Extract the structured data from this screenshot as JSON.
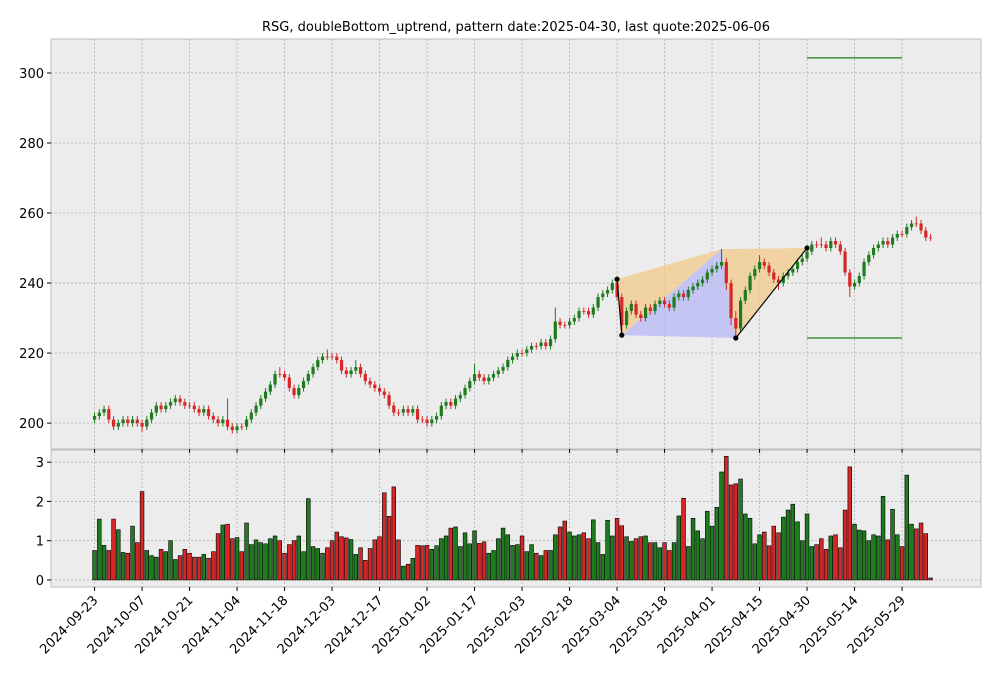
{
  "chart_data": {
    "type": "candlestick",
    "title": "RSG, doubleBottom_uptrend, pattern date:2025-04-30, last quote:2025-06-06",
    "x": [
      "2024-09-23",
      "2024-09-24",
      "2024-09-25",
      "2024-09-26",
      "2024-09-27",
      "2024-09-30",
      "2024-10-01",
      "2024-10-02",
      "2024-10-03",
      "2024-10-04",
      "2024-10-07",
      "2024-10-08",
      "2024-10-09",
      "2024-10-10",
      "2024-10-11",
      "2024-10-14",
      "2024-10-15",
      "2024-10-16",
      "2024-10-17",
      "2024-10-18",
      "2024-10-21",
      "2024-10-22",
      "2024-10-23",
      "2024-10-24",
      "2024-10-25",
      "2024-10-28",
      "2024-10-29",
      "2024-10-30",
      "2024-10-31",
      "2024-11-01",
      "2024-11-04",
      "2024-11-05",
      "2024-11-06",
      "2024-11-07",
      "2024-11-08",
      "2024-11-11",
      "2024-11-12",
      "2024-11-13",
      "2024-11-14",
      "2024-11-15",
      "2024-11-18",
      "2024-11-19",
      "2024-11-20",
      "2024-11-21",
      "2024-11-22",
      "2024-11-25",
      "2024-11-26",
      "2024-11-27",
      "2024-11-29",
      "2024-12-02",
      "2024-12-03",
      "2024-12-04",
      "2024-12-05",
      "2024-12-06",
      "2024-12-09",
      "2024-12-10",
      "2024-12-11",
      "2024-12-12",
      "2024-12-13",
      "2024-12-16",
      "2024-12-17",
      "2024-12-18",
      "2024-12-19",
      "2024-12-20",
      "2024-12-23",
      "2024-12-24",
      "2024-12-26",
      "2024-12-27",
      "2024-12-30",
      "2024-12-31",
      "2025-01-02",
      "2025-01-03",
      "2025-01-06",
      "2025-01-07",
      "2025-01-08",
      "2025-01-10",
      "2025-01-13",
      "2025-01-14",
      "2025-01-15",
      "2025-01-16",
      "2025-01-17",
      "2025-01-21",
      "2025-01-22",
      "2025-01-23",
      "2025-01-24",
      "2025-01-27",
      "2025-01-28",
      "2025-01-29",
      "2025-01-30",
      "2025-01-31",
      "2025-02-03",
      "2025-02-04",
      "2025-02-05",
      "2025-02-06",
      "2025-02-07",
      "2025-02-10",
      "2025-02-11",
      "2025-02-12",
      "2025-02-13",
      "2025-02-14",
      "2025-02-18",
      "2025-02-19",
      "2025-02-20",
      "2025-02-21",
      "2025-02-24",
      "2025-02-25",
      "2025-02-26",
      "2025-02-27",
      "2025-02-28",
      "2025-03-03",
      "2025-03-04",
      "2025-03-05",
      "2025-03-06",
      "2025-03-07",
      "2025-03-10",
      "2025-03-11",
      "2025-03-12",
      "2025-03-13",
      "2025-03-14",
      "2025-03-17",
      "2025-03-18",
      "2025-03-19",
      "2025-03-20",
      "2025-03-21",
      "2025-03-24",
      "2025-03-25",
      "2025-03-26",
      "2025-03-27",
      "2025-03-28",
      "2025-03-31",
      "2025-04-01",
      "2025-04-02",
      "2025-04-03",
      "2025-04-04",
      "2025-04-07",
      "2025-04-08",
      "2025-04-09",
      "2025-04-10",
      "2025-04-11",
      "2025-04-14",
      "2025-04-15",
      "2025-04-16",
      "2025-04-17",
      "2025-04-21",
      "2025-04-22",
      "2025-04-23",
      "2025-04-24",
      "2025-04-25",
      "2025-04-28",
      "2025-04-29",
      "2025-04-30",
      "2025-05-01",
      "2025-05-02",
      "2025-05-05",
      "2025-05-06",
      "2025-05-07",
      "2025-05-08",
      "2025-05-09",
      "2025-05-12",
      "2025-05-13",
      "2025-05-14",
      "2025-05-15",
      "2025-05-16",
      "2025-05-19",
      "2025-05-20",
      "2025-05-21",
      "2025-05-22",
      "2025-05-23",
      "2025-05-27",
      "2025-05-28",
      "2025-05-29",
      "2025-05-30",
      "2025-06-02",
      "2025-06-03",
      "2025-06-04",
      "2025-06-05",
      "2025-06-06"
    ],
    "open": [
      201,
      202,
      203,
      204,
      201,
      199,
      200,
      201,
      200,
      201,
      200,
      199,
      201,
      203,
      205,
      204,
      205,
      206,
      207,
      206,
      205,
      205,
      204,
      203,
      204,
      202,
      201,
      200,
      201,
      199,
      198,
      199,
      199,
      201,
      203,
      205,
      207,
      209,
      211,
      214,
      214,
      213,
      210,
      208,
      210,
      212,
      214,
      216,
      218,
      219,
      219,
      219,
      218,
      215,
      214,
      215,
      216,
      214,
      212,
      211,
      210,
      209,
      208,
      205,
      203,
      203,
      204,
      203,
      204,
      201,
      201,
      200,
      201,
      202,
      205,
      206,
      205,
      207,
      208,
      210,
      212,
      214,
      213,
      212,
      213,
      214,
      215,
      216,
      218,
      219,
      220,
      220,
      221,
      222,
      222,
      223,
      222,
      224,
      229,
      228,
      228,
      229,
      230,
      232,
      232,
      231,
      233,
      236,
      237,
      238,
      240,
      236,
      228,
      232,
      234,
      231,
      230,
      233,
      232,
      234,
      235,
      234,
      233,
      236,
      237,
      236,
      238,
      239,
      240,
      241,
      243,
      244,
      245,
      246,
      240,
      230,
      227,
      235,
      238,
      242,
      244,
      246,
      245,
      243,
      241,
      240,
      242,
      243,
      244,
      246,
      247,
      249,
      251,
      251,
      251,
      250,
      252,
      251,
      249,
      243,
      239,
      240,
      242,
      246,
      248,
      250,
      251,
      252,
      251,
      253,
      254,
      254,
      256,
      257,
      257,
      255,
      253
    ],
    "high": [
      203,
      204,
      205,
      205,
      202,
      201,
      202,
      202,
      202,
      202,
      201,
      202,
      204,
      206,
      206,
      206,
      207,
      208,
      208,
      207,
      206,
      206,
      205,
      205,
      205,
      203,
      202,
      202,
      207,
      200,
      200,
      200,
      202,
      204,
      206,
      208,
      210,
      212,
      215,
      216,
      215,
      214,
      211,
      211,
      213,
      215,
      217,
      219,
      220,
      221,
      220,
      220,
      219,
      216,
      216,
      218,
      217,
      215,
      213,
      212,
      211,
      210,
      209,
      206,
      204,
      205,
      205,
      205,
      205,
      202,
      202,
      202,
      203,
      206,
      207,
      207,
      208,
      209,
      211,
      213,
      217,
      215,
      214,
      214,
      215,
      216,
      217,
      219,
      220,
      221,
      221,
      222,
      223,
      223,
      224,
      224,
      225,
      233,
      230,
      229,
      230,
      231,
      233,
      233,
      233,
      234,
      237,
      238,
      239,
      241,
      241.5,
      237,
      233,
      235,
      235,
      232,
      234,
      234,
      235,
      236,
      236,
      235,
      237,
      238,
      238,
      239,
      240,
      241,
      242,
      244,
      245,
      246,
      249.7,
      247,
      241,
      232,
      236,
      239,
      243,
      245,
      248,
      247,
      246,
      244,
      242,
      243,
      244,
      245,
      247,
      248,
      250,
      252,
      252,
      253,
      252,
      253,
      253,
      252,
      250,
      244,
      241,
      243,
      247,
      249,
      251,
      252,
      253,
      253,
      254,
      255,
      255,
      257,
      258,
      259,
      258,
      256,
      254
    ],
    "low": [
      200,
      201,
      202,
      200,
      198,
      198,
      199,
      199,
      199,
      199,
      197.5,
      198,
      200,
      202,
      203,
      203,
      204,
      205,
      205,
      204,
      204,
      203,
      202,
      202,
      201,
      200,
      199,
      199,
      198,
      197,
      197,
      198,
      198,
      200,
      202,
      204,
      206,
      208,
      210,
      213,
      212,
      209,
      207,
      207,
      209,
      211,
      213,
      215,
      217,
      218,
      218,
      217,
      214,
      213,
      213,
      214,
      213,
      211,
      210,
      209,
      208,
      207,
      204,
      202,
      202,
      202,
      202,
      202,
      200,
      200,
      199,
      199,
      200,
      201,
      204,
      204,
      204,
      206,
      207,
      209,
      211,
      212,
      211,
      211,
      212,
      213,
      214,
      215,
      217,
      218,
      219,
      219,
      220,
      221,
      221,
      221,
      221,
      223,
      227,
      227,
      227,
      228,
      229,
      231,
      230,
      230,
      232,
      235,
      236,
      237,
      235,
      225,
      227,
      231,
      230,
      229,
      229,
      231,
      231,
      233,
      233,
      232,
      232,
      235,
      235,
      235,
      237,
      238,
      239,
      240,
      242,
      243,
      244,
      238,
      228,
      224,
      226,
      234,
      237,
      241,
      243,
      244,
      242,
      240,
      238,
      239,
      241,
      242,
      243,
      245,
      246,
      248,
      250,
      250,
      249,
      249,
      250,
      248,
      242,
      236,
      238,
      239,
      241,
      245,
      247,
      249,
      250,
      250,
      250,
      252,
      253,
      253,
      255,
      256,
      254,
      252,
      252
    ],
    "close": [
      202,
      203,
      204,
      201,
      199,
      200,
      201,
      200,
      201,
      200,
      199,
      201,
      203,
      205,
      204,
      205,
      206,
      207,
      206,
      205,
      205,
      204,
      203,
      204,
      202,
      201,
      200,
      201,
      199,
      198,
      199,
      199,
      201,
      203,
      205,
      207,
      209,
      211,
      214,
      214,
      213,
      210,
      208,
      210,
      212,
      214,
      216,
      218,
      219,
      219,
      219,
      218,
      215,
      214,
      215,
      216,
      214,
      212,
      211,
      210,
      209,
      208,
      205,
      203,
      203,
      204,
      203,
      204,
      201,
      201,
      200,
      201,
      202,
      205,
      206,
      205,
      207,
      208,
      210,
      212,
      214,
      213,
      212,
      213,
      214,
      215,
      216,
      218,
      219,
      220,
      220,
      221,
      222,
      222,
      223,
      222,
      224,
      229,
      228,
      228,
      229,
      230,
      232,
      232,
      231,
      233,
      236,
      237,
      238,
      240,
      236,
      228,
      232,
      234,
      231,
      230,
      233,
      232,
      234,
      235,
      234,
      233,
      236,
      237,
      236,
      238,
      239,
      240,
      241,
      243,
      244,
      245,
      246,
      240,
      230,
      227,
      235,
      238,
      242,
      244,
      246,
      245,
      243,
      241,
      240,
      242,
      243,
      244,
      246,
      247,
      249,
      251,
      251,
      251,
      250,
      252,
      251,
      249,
      243,
      239,
      240,
      242,
      246,
      248,
      250,
      251,
      252,
      251,
      253,
      254,
      254,
      256,
      257,
      257,
      255,
      253,
      253
    ],
    "volume": [
      0.75,
      1.55,
      0.88,
      0.75,
      1.55,
      1.28,
      0.7,
      0.68,
      1.37,
      0.95,
      2.25,
      0.75,
      0.62,
      0.58,
      0.78,
      0.72,
      1.0,
      0.52,
      0.62,
      0.78,
      0.68,
      0.58,
      0.58,
      0.65,
      0.55,
      0.72,
      1.18,
      1.4,
      1.42,
      1.05,
      1.08,
      0.72,
      1.45,
      0.9,
      1.02,
      0.95,
      0.92,
      1.05,
      1.12,
      1.0,
      0.68,
      0.9,
      1.0,
      1.12,
      0.72,
      2.07,
      0.85,
      0.8,
      0.68,
      0.82,
      1.0,
      1.22,
      1.1,
      1.07,
      1.03,
      0.65,
      0.82,
      0.5,
      0.8,
      1.02,
      1.1,
      2.22,
      1.62,
      2.37,
      1.02,
      0.35,
      0.4,
      0.55,
      0.88,
      0.87,
      0.88,
      0.78,
      0.87,
      1.05,
      1.12,
      1.32,
      1.35,
      0.85,
      1.2,
      0.92,
      1.25,
      0.93,
      0.97,
      0.68,
      0.75,
      1.05,
      1.32,
      1.15,
      0.88,
      0.9,
      1.12,
      0.72,
      0.9,
      0.68,
      0.62,
      0.75,
      0.75,
      1.15,
      1.35,
      1.5,
      1.22,
      1.12,
      1.15,
      1.2,
      1.05,
      1.53,
      0.95,
      0.65,
      1.52,
      1.12,
      1.57,
      1.38,
      1.1,
      0.98,
      1.05,
      1.1,
      1.12,
      0.95,
      0.95,
      0.82,
      0.95,
      0.75,
      0.95,
      1.63,
      2.08,
      0.85,
      1.57,
      1.25,
      1.05,
      1.75,
      1.37,
      1.85,
      2.75,
      3.15,
      2.42,
      2.45,
      2.57,
      1.68,
      1.57,
      0.92,
      1.15,
      1.22,
      0.87,
      1.37,
      1.2,
      1.6,
      1.78,
      1.93,
      1.48,
      1.0,
      1.68,
      0.85,
      0.9,
      1.05,
      0.78,
      1.12,
      1.15,
      0.82,
      1.78,
      2.88,
      1.42,
      1.27,
      1.25,
      1.0,
      1.15,
      1.12,
      2.13,
      1.02,
      1.8,
      1.15,
      0.85,
      2.67,
      1.42,
      1.3,
      1.45,
      1.18,
      0.05
    ],
    "up_color": "#1e7b1e",
    "down_color": "#d62728",
    "xticks": [
      "2024-09-23",
      "2024-10-07",
      "2024-10-21",
      "2024-11-04",
      "2024-11-18",
      "2024-12-03",
      "2024-12-17",
      "2025-01-02",
      "2025-01-17",
      "2025-02-03",
      "2025-02-18",
      "2025-03-04",
      "2025-03-18",
      "2025-04-01",
      "2025-04-15",
      "2025-04-30",
      "2025-05-14",
      "2025-05-29"
    ],
    "ylim": [
      192.6,
      309.7
    ],
    "yticks": [
      200,
      220,
      240,
      260,
      280,
      300
    ],
    "volume_ylim": [
      -0.18,
      3.31
    ],
    "volume_yticks": [
      0,
      1,
      2,
      3
    ],
    "grid": true,
    "pattern": {
      "x": [
        "2025-03-04",
        "2025-03-05",
        "2025-04-03",
        "2025-04-08",
        "2025-04-30"
      ],
      "y": [
        241.1,
        225.1,
        249.7,
        224.3,
        250
      ],
      "outer_color": "#f3c98b",
      "inner_color": "#b8b8f5"
    },
    "levels": {
      "values": [
        304.3,
        224.3
      ],
      "start": "2025-04-30",
      "end": "2025-05-29",
      "color": "#1a7f1a"
    }
  }
}
